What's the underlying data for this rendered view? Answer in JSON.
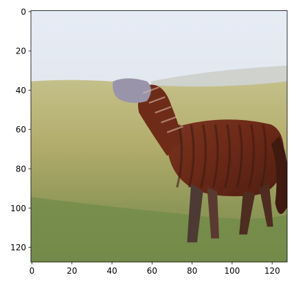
{
  "chart_data": {
    "type": "image",
    "xlim": [
      -0.5,
      127.5
    ],
    "ylim": [
      127.5,
      -0.5
    ],
    "xticks": [
      0,
      20,
      40,
      60,
      80,
      100,
      120
    ],
    "yticks": [
      0,
      20,
      40,
      60,
      80,
      100,
      120
    ]
  }
}
